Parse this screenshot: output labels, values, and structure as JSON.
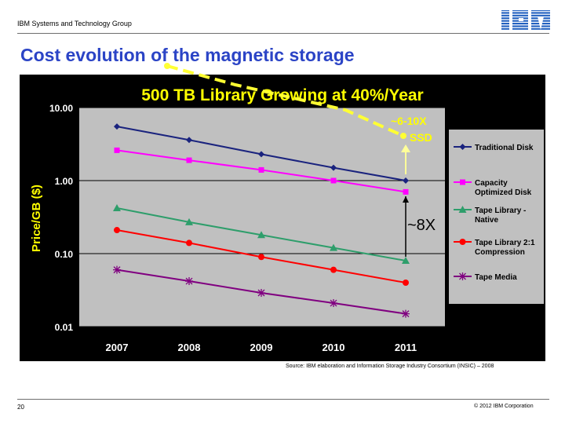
{
  "header": {
    "group": "IBM Systems and Technology Group",
    "logo": "IBM"
  },
  "slide_title": "Cost evolution of the magnetic storage",
  "source": "Source: IBM elaboration and Information Storage Industry Consortium (INSIC) – 2008",
  "footer": {
    "page": "20",
    "copyright": "© 2012 IBM Corporation"
  },
  "colors": {
    "chart_bg": "#000000",
    "plot_bg": "#c0c0c0",
    "legend_bg": "#c0c0c0",
    "title_yellow": "#ffff00",
    "annotation_arrow": "#ffff4d",
    "slide_title": "#2b44c6"
  },
  "chart_data": {
    "type": "line",
    "title": "500 TB Library Growing at 40%/Year",
    "xlabel": "",
    "ylabel": "Price/GB ($)",
    "y_scale": "log",
    "ylim": [
      0.01,
      10
    ],
    "y_ticks": [
      "10.00",
      "1.00",
      "0.10",
      "0.01"
    ],
    "grid": true,
    "legend_position": "right",
    "categories": [
      "2007",
      "2008",
      "2009",
      "2010",
      "2011"
    ],
    "series": [
      {
        "name": "Traditional Disk",
        "color": "#1a237e",
        "marker": "diamond",
        "values": [
          5.5,
          3.6,
          2.3,
          1.5,
          1.0
        ]
      },
      {
        "name": "Capacity Optimized Disk",
        "color": "#ff00ff",
        "marker": "square",
        "values": [
          2.6,
          1.9,
          1.4,
          1.0,
          0.7
        ]
      },
      {
        "name": "Tape Library - Native",
        "color": "#2e9e6b",
        "marker": "triangle",
        "values": [
          0.42,
          0.27,
          0.18,
          0.12,
          0.08
        ]
      },
      {
        "name": "Tape Library 2:1 Compression",
        "color": "#ff0000",
        "marker": "circle",
        "values": [
          0.21,
          0.14,
          0.09,
          0.06,
          0.04
        ]
      },
      {
        "name": "Tape Media",
        "color": "#800080",
        "marker": "asterisk",
        "values": [
          0.06,
          0.042,
          0.029,
          0.021,
          0.015
        ]
      }
    ],
    "annotations": {
      "ssd": "~6-10X SSD",
      "ratio": "~8X"
    }
  }
}
